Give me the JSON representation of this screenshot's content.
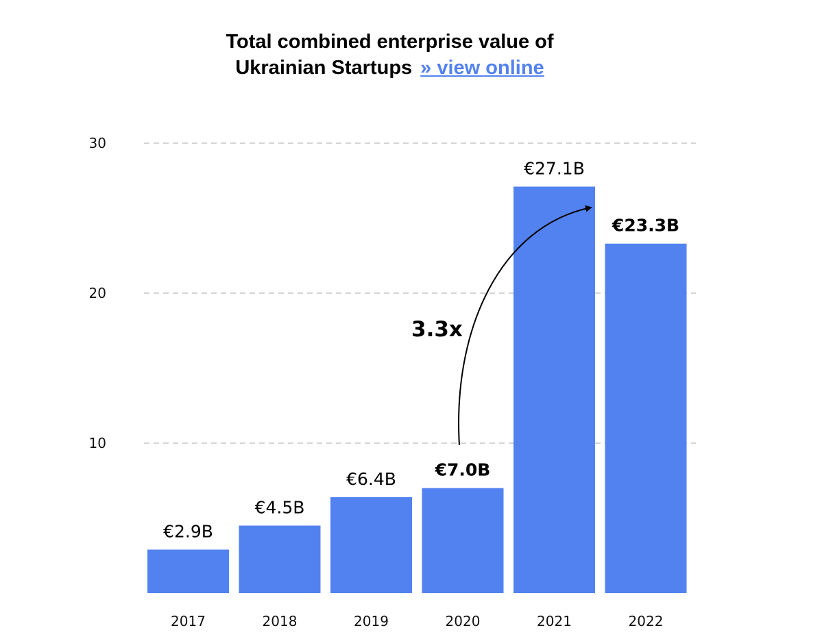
{
  "chart_data": {
    "type": "bar",
    "title_line1": "Total combined enterprise value of",
    "title_line2": "Ukrainian Startups",
    "link_text": "» view online",
    "categories": [
      "2017",
      "2018",
      "2019",
      "2020",
      "2021",
      "2022"
    ],
    "values": [
      2.9,
      4.5,
      6.4,
      7.0,
      27.1,
      23.3
    ],
    "value_labels": [
      "€2.9B",
      "€4.5B",
      "€6.4B",
      "€7.0B",
      "€27.1B",
      "€23.3B"
    ],
    "bold_labels": [
      false,
      false,
      false,
      true,
      false,
      true
    ],
    "yticks": [
      "10",
      "20",
      "30"
    ],
    "ylim": [
      0,
      30
    ],
    "grid": true,
    "annotation": "3.3x",
    "colors": {
      "bar": "#5282ef",
      "link": "#5282ef",
      "grid": "#d4d4d4"
    }
  }
}
